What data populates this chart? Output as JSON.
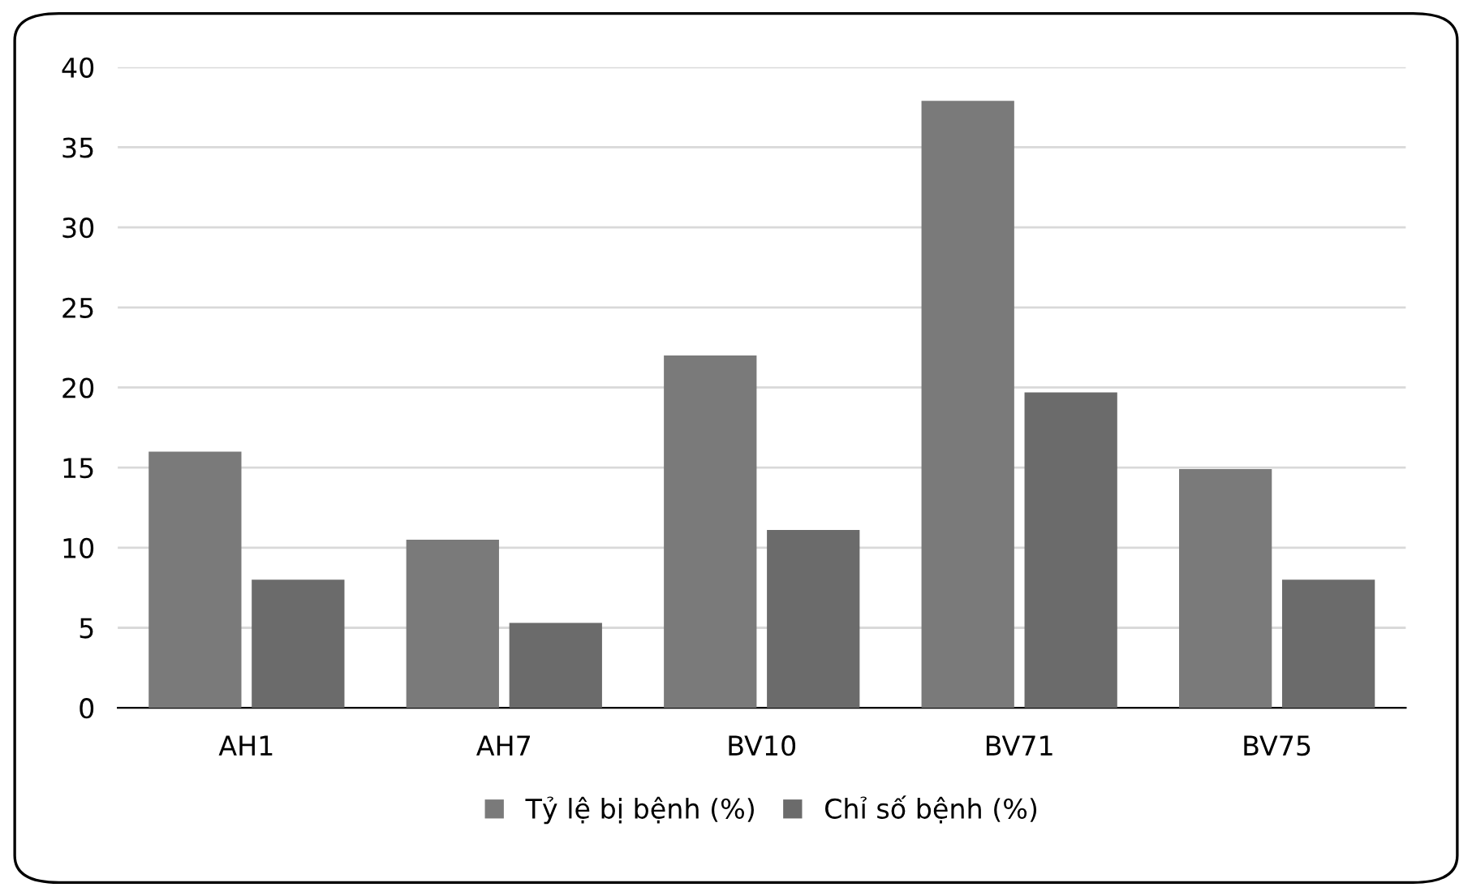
{
  "chart_data": {
    "type": "bar",
    "categories": [
      "AH1",
      "AH7",
      "BV10",
      "BV71",
      "BV75"
    ],
    "series": [
      {
        "name": "Tỷ lệ bị bệnh (%)",
        "color": "#7a7a7a",
        "values": [
          16,
          10.5,
          22,
          37.9,
          14.9
        ]
      },
      {
        "name": "Chỉ số bệnh (%)",
        "color": "#6b6b6b",
        "values": [
          8,
          5.3,
          11.1,
          19.7,
          8
        ]
      }
    ],
    "ylim": [
      0,
      40
    ],
    "yticks": [
      0,
      5,
      10,
      15,
      20,
      25,
      30,
      35,
      40
    ],
    "grid": "y",
    "legend": "bottom"
  }
}
